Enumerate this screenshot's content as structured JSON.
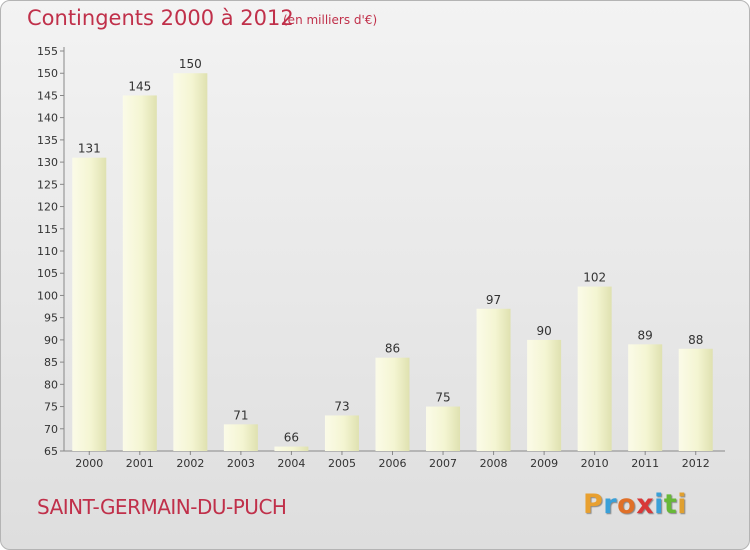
{
  "title": "Contingents 2000 à 2012",
  "subtitle": "(en milliers d'€)",
  "commune": "SAINT-GERMAIN-DU-PUCH",
  "logo": {
    "letters": [
      "P",
      "r",
      "o",
      "x",
      "i",
      "t",
      "i"
    ],
    "colors": [
      "#e8a030",
      "#3aa0d8",
      "#e07028",
      "#d83838",
      "#3aa0d8",
      "#68b838",
      "#e0a030"
    ]
  },
  "colors": {
    "accent": "#c0304a",
    "bar_light": "#fbfbe6",
    "bar_dark": "#e0e2b4",
    "axis": "#888888"
  },
  "chart_data": {
    "type": "bar",
    "categories": [
      "2000",
      "2001",
      "2002",
      "2003",
      "2004",
      "2005",
      "2006",
      "2007",
      "2008",
      "2009",
      "2010",
      "2011",
      "2012"
    ],
    "values": [
      131,
      145,
      150,
      71,
      66,
      73,
      86,
      75,
      97,
      90,
      102,
      89,
      88
    ],
    "ylim": [
      65,
      155
    ],
    "yticks": [
      65,
      70,
      75,
      80,
      85,
      90,
      95,
      100,
      105,
      110,
      115,
      120,
      125,
      130,
      135,
      140,
      145,
      150,
      155
    ],
    "title": "Contingents 2000 à 2012",
    "xlabel": "",
    "ylabel": "",
    "grid": false
  }
}
